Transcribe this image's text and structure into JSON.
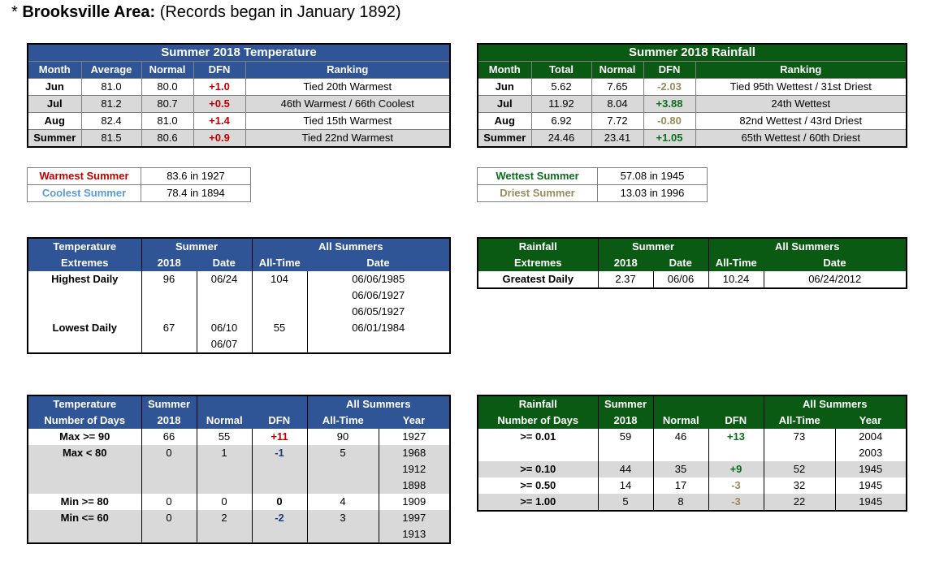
{
  "header": {
    "star": "*",
    "area": "Brooksville Area:",
    "records": "(Records began in January 1892)"
  },
  "temp_summary": {
    "title": "Summer 2018 Temperature",
    "cols": [
      "Month",
      "Average",
      "Normal",
      "DFN",
      "Ranking"
    ],
    "rows": [
      {
        "month": "Jun",
        "avg": "81.0",
        "normal": "80.0",
        "dfn": "+1.0",
        "rank": "Tied 20th Warmest"
      },
      {
        "month": "Jul",
        "avg": "81.2",
        "normal": "80.7",
        "dfn": "+0.5",
        "rank": "46th Warmest / 66th Coolest"
      },
      {
        "month": "Aug",
        "avg": "82.4",
        "normal": "81.0",
        "dfn": "+1.4",
        "rank": "Tied 15th Warmest"
      },
      {
        "month": "Summer",
        "avg": "81.5",
        "normal": "80.6",
        "dfn": "+0.9",
        "rank": "Tied 22nd Warmest"
      }
    ]
  },
  "rain_summary": {
    "title": "Summer 2018 Rainfall",
    "cols": [
      "Month",
      "Total",
      "Normal",
      "DFN",
      "Ranking"
    ],
    "rows": [
      {
        "month": "Jun",
        "total": "5.62",
        "normal": "7.65",
        "dfn": "-2.03",
        "rank": "Tied 95th Wettest / 31st Driest"
      },
      {
        "month": "Jul",
        "total": "11.92",
        "normal": "8.04",
        "dfn": "+3.88",
        "rank": "24th Wettest"
      },
      {
        "month": "Aug",
        "total": "6.92",
        "normal": "7.72",
        "dfn": "-0.80",
        "rank": "82nd Wettest / 43rd Driest"
      },
      {
        "month": "Summer",
        "total": "24.46",
        "normal": "23.41",
        "dfn": "+1.05",
        "rank": "65th Wettest / 60th Driest"
      }
    ]
  },
  "temp_records": {
    "warmest_label": "Warmest Summer",
    "warmest_value": "83.6 in 1927",
    "coolest_label": "Coolest Summer",
    "coolest_value": "78.4 in 1894"
  },
  "rain_records": {
    "wettest_label": "Wettest Summer",
    "wettest_value": "57.08 in 1945",
    "driest_label": "Driest Summer",
    "driest_value": "13.03 in 1996"
  },
  "temp_extremes": {
    "h1": "Temperature",
    "h2": "Extremes",
    "summer": "Summer",
    "year": "2018",
    "date": "Date",
    "all": "All Summers",
    "alltime": "All-Time",
    "alldate": "Date",
    "highest_label": "Highest Daily",
    "highest_val": "96",
    "highest_date": "06/24",
    "highest_alltime": "104",
    "highest_dates": [
      "06/06/1985",
      "06/06/1927",
      "06/05/1927"
    ],
    "lowest_label": "Lowest Daily",
    "lowest_val": "67",
    "lowest_date1": "06/10",
    "lowest_date2": "06/07",
    "lowest_alltime": "55",
    "lowest_alldate": "06/01/1984"
  },
  "rain_extremes": {
    "h1": "Rainfall",
    "h2": "Extremes",
    "summer": "Summer",
    "year": "2018",
    "date": "Date",
    "all": "All Summers",
    "alltime": "All-Time",
    "alldate": "Date",
    "label": "Greatest Daily",
    "val": "2.37",
    "d": "06/06",
    "alltime_val": "10.24",
    "alltime_date": "06/24/2012"
  },
  "temp_days": {
    "h1": "Temperature",
    "h2": "Number of Days",
    "summer": "Summer",
    "year": "2018",
    "normal": "Normal",
    "dfn": "DFN",
    "all": "All Summers",
    "alltime": "All-Time",
    "yr": "Year",
    "max90": {
      "label": "Max >= 90",
      "v": "66",
      "n": "55",
      "dfn": "+11",
      "at": "90",
      "y": "1927"
    },
    "max80": {
      "label": "Max < 80",
      "v": "0",
      "n": "1",
      "dfn": "-1",
      "at": "5",
      "y": [
        "1968",
        "1912",
        "1898"
      ]
    },
    "min80": {
      "label": "Min >= 80",
      "v": "0",
      "n": "0",
      "dfn": "0",
      "at": "4",
      "y": "1909"
    },
    "min60": {
      "label": "Min <= 60",
      "v": "0",
      "n": "2",
      "dfn": "-2",
      "at": "3",
      "y": [
        "1997",
        "1913"
      ]
    }
  },
  "rain_days": {
    "h1": "Rainfall",
    "h2": "Number of Days",
    "summer": "Summer",
    "year": "2018",
    "normal": "Normal",
    "dfn": "DFN",
    "all": "All Summers",
    "alltime": "All-Time",
    "yr": "Year",
    "r001": {
      "label": ">= 0.01",
      "v": "59",
      "n": "46",
      "dfn": "+13",
      "at": "73",
      "y": [
        "2004",
        "2003"
      ]
    },
    "r010": {
      "label": ">= 0.10",
      "v": "44",
      "n": "35",
      "dfn": "+9",
      "at": "52",
      "y": "1945"
    },
    "r050": {
      "label": ">= 0.50",
      "v": "14",
      "n": "17",
      "dfn": "-3",
      "at": "32",
      "y": "1945"
    },
    "r100": {
      "label": ">= 1.00",
      "v": "5",
      "n": "8",
      "dfn": "-3",
      "at": "22",
      "y": "1945"
    }
  },
  "colors": {
    "blue_header": "#2f5597",
    "green_header": "#0b5a13",
    "shade": "#d9d9d9",
    "red": "#c00000",
    "green": "#0b6e1c",
    "tan": "#9a8a5a"
  }
}
